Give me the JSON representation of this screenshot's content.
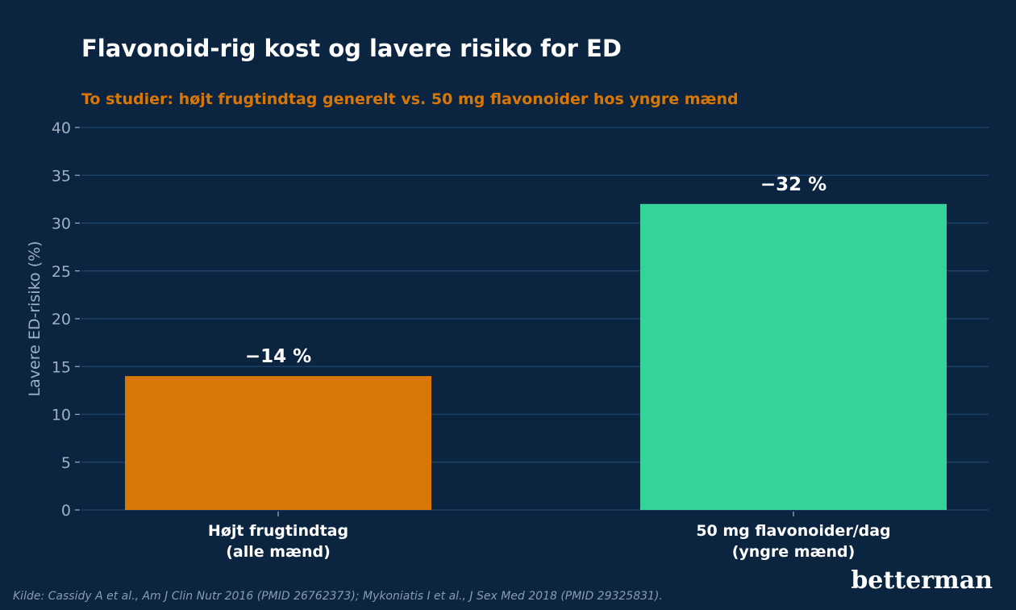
{
  "chart_data": {
    "type": "bar",
    "title": "Flavonoid-rig kost og lavere risiko for ED",
    "subtitle": "To studier: højt frugtindtag generelt vs. 50 mg flavonoider hos yngre mænd",
    "ylabel": "Lavere ED-risiko (%)",
    "xlabel": "",
    "ylim": [
      0,
      40
    ],
    "yticks": [
      0,
      5,
      10,
      15,
      20,
      25,
      30,
      35,
      40
    ],
    "grid": true,
    "categories": [
      [
        "Højt frugtindtag",
        "(alle mænd)"
      ],
      [
        "50 mg flavonoider/dag",
        "(yngre mænd)"
      ]
    ],
    "values": [
      14,
      32
    ],
    "data_labels": [
      "−14 %",
      "−32 %"
    ],
    "colors": [
      "#d97706",
      "#34d399"
    ]
  },
  "colors": {
    "background": "#0b2540",
    "grid": "#1d4168",
    "subtitle": "#d97706",
    "axis_text": "#9fb0c3"
  },
  "source": "Kilde: Cassidy A et al., Am J Clin Nutr 2016 (PMID 26762373); Mykoniatis I et al., J Sex Med 2018 (PMID 29325831).",
  "brand": "betterman"
}
